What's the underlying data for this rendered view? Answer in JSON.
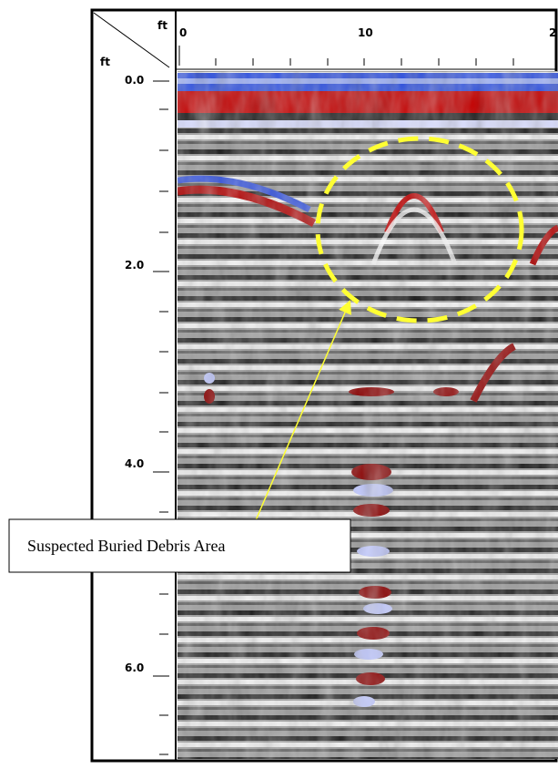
{
  "figure": {
    "x_unit": "ft",
    "y_unit": "ft",
    "x_ticks": [
      "0",
      "10",
      "2"
    ],
    "y_ticks": [
      "0.0",
      "2.0",
      "4.0",
      "6.0"
    ],
    "annotation": "Suspected Buried Debris Area"
  }
}
